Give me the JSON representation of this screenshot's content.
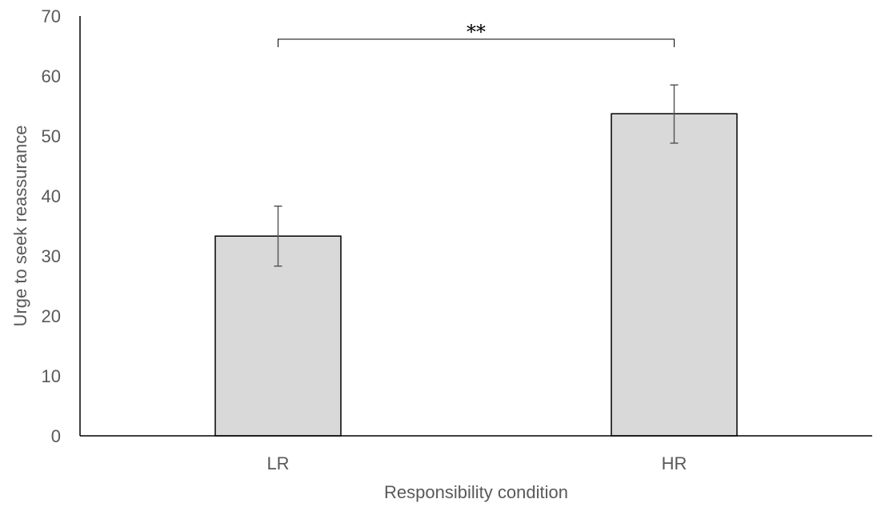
{
  "chart_data": {
    "type": "bar",
    "categories": [
      "LR",
      "HR"
    ],
    "values": [
      33.3,
      53.7
    ],
    "error_low": [
      28.3,
      48.8
    ],
    "error_high": [
      38.3,
      58.5
    ],
    "xlabel": "Responsibility condition",
    "ylabel": "Urge to seek reassurance",
    "ylim": [
      0,
      70
    ],
    "yticks": [
      0,
      10,
      20,
      30,
      40,
      50,
      60,
      70
    ],
    "grid": false,
    "bar_color": "#d9d9d9",
    "annotations": [
      {
        "text": "**",
        "from": "LR",
        "to": "HR"
      }
    ]
  }
}
